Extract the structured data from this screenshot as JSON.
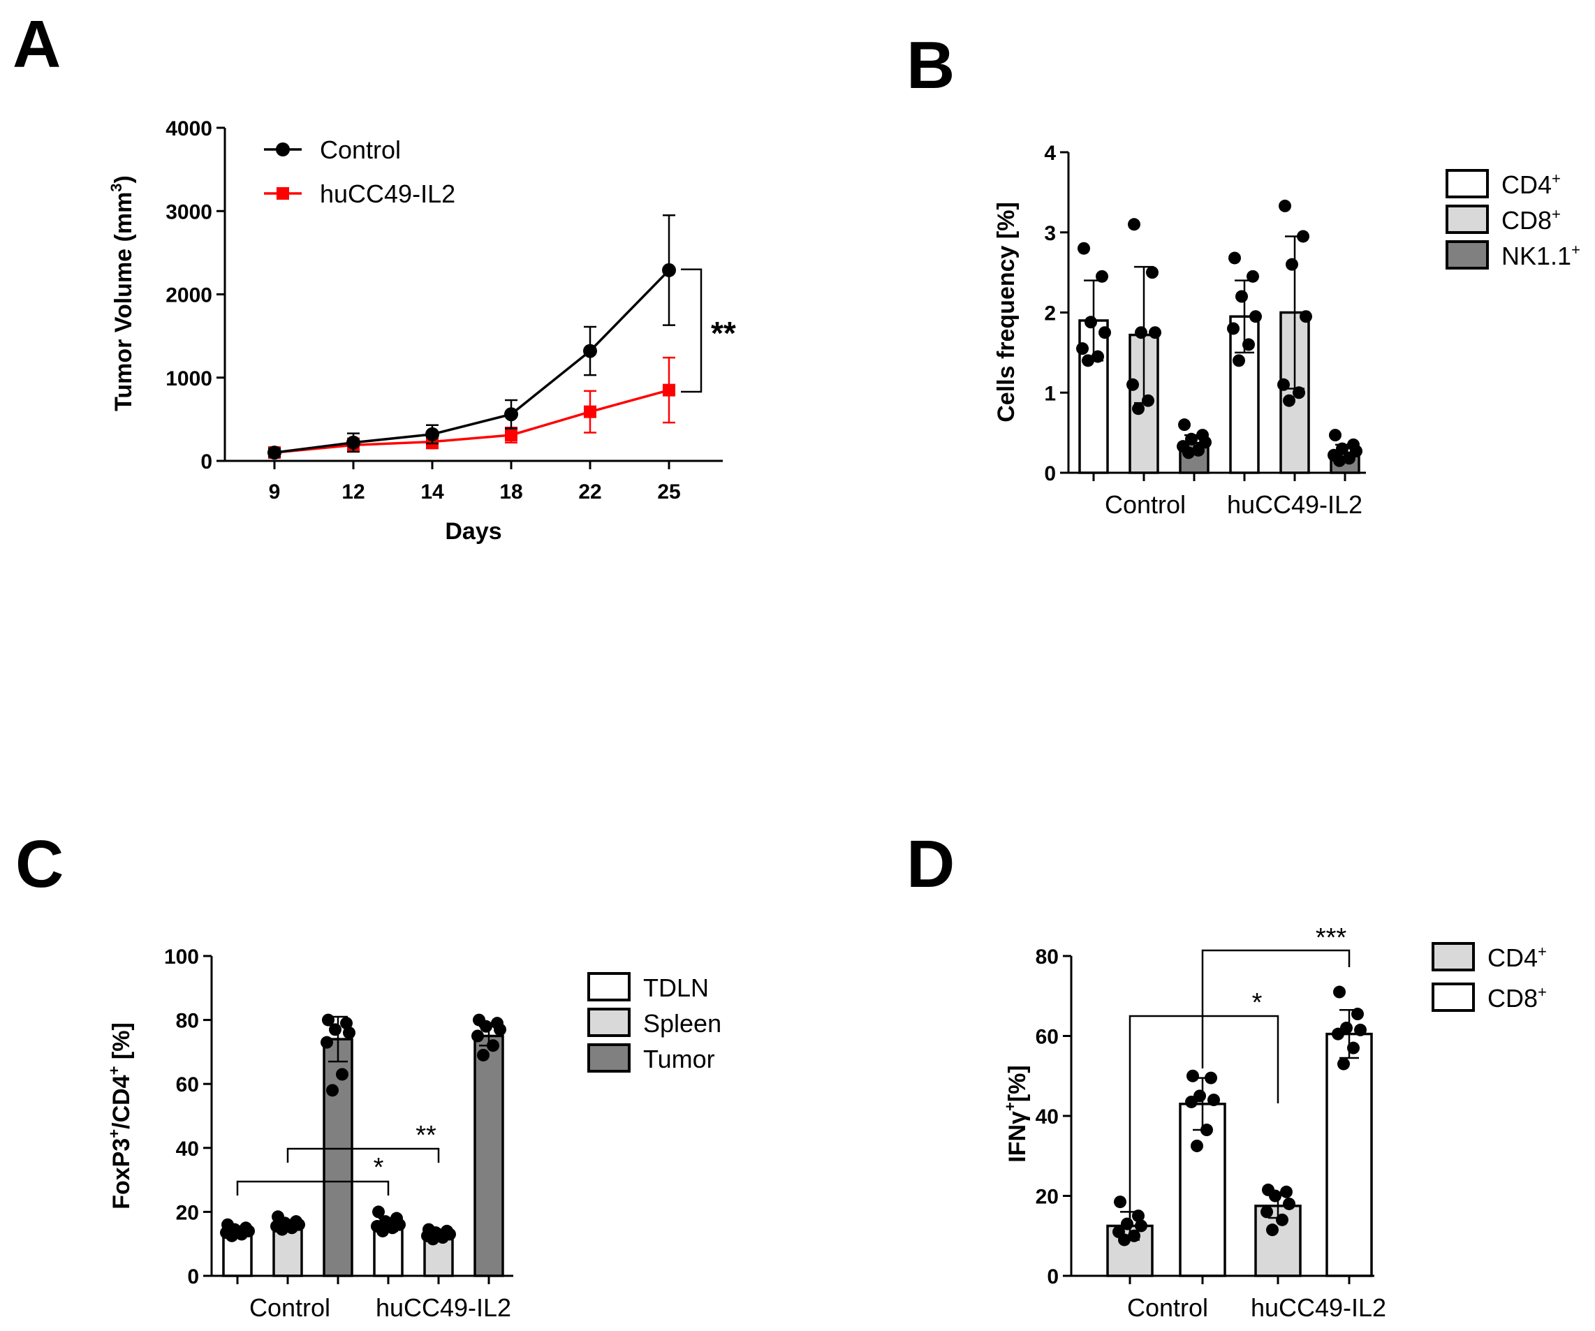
{
  "chart_data": [
    {
      "panel": "A",
      "type": "line",
      "title": "",
      "xlabel": "Days",
      "ylabel": "Tumor Volume (mm",
      "ylabel_sup": "3",
      "ylabel_end": ")",
      "ylim": [
        0,
        4000
      ],
      "yticks": [
        0,
        1000,
        2000,
        3000,
        4000
      ],
      "categories": [
        "9",
        "12",
        "14",
        "18",
        "22",
        "25"
      ],
      "series": [
        {
          "name": "Control",
          "color": "#000000",
          "marker": "circle",
          "values": [
            100,
            220,
            320,
            560,
            1320,
            2290
          ],
          "errors": [
            50,
            110,
            110,
            170,
            290,
            660
          ]
        },
        {
          "name": "huCC49-IL2",
          "color": "#ff0000",
          "marker": "square",
          "values": [
            100,
            190,
            230,
            310,
            590,
            850
          ],
          "errors": [
            50,
            80,
            80,
            90,
            250,
            390
          ]
        }
      ],
      "annotation": "**"
    },
    {
      "panel": "B",
      "type": "bar",
      "ylabel": "Cells frequency [%]",
      "ylim": [
        0,
        4
      ],
      "yticks": [
        0,
        1,
        2,
        3,
        4
      ],
      "groups": [
        "Control",
        "huCC49-IL2"
      ],
      "series": [
        {
          "name": "CD4",
          "sup": "+",
          "color": "#ffffff",
          "values": [
            1.9,
            1.95
          ],
          "errors": [
            0.5,
            0.45
          ],
          "points": [
            [
              2.8,
              2.45,
              1.88,
              1.75,
              1.55,
              1.45,
              1.4
            ],
            [
              2.68,
              2.45,
              2.2,
              1.95,
              1.8,
              1.6,
              1.4
            ]
          ]
        },
        {
          "name": "CD8",
          "sup": "+",
          "color": "#d9d9d9",
          "values": [
            1.72,
            2.0
          ],
          "errors": [
            0.85,
            0.95
          ],
          "points": [
            [
              3.1,
              2.5,
              1.75,
              1.75,
              1.1,
              0.9,
              0.8
            ],
            [
              3.33,
              2.95,
              2.6,
              1.95,
              1.1,
              1.0,
              0.9
            ]
          ]
        },
        {
          "name": "NK1.1",
          "sup": "+",
          "color": "#808080",
          "values": [
            0.37,
            0.25
          ],
          "errors": [
            0.1,
            0.1
          ],
          "points": [
            [
              0.6,
              0.47,
              0.42,
              0.38,
              0.33,
              0.28,
              0.25
            ],
            [
              0.47,
              0.35,
              0.3,
              0.27,
              0.22,
              0.18,
              0.15
            ]
          ]
        }
      ]
    },
    {
      "panel": "C",
      "type": "bar",
      "ylabel": "FoxP3",
      "ylabel_sup1": "+",
      "ylabel_mid": "/CD4",
      "ylabel_sup2": "+",
      "ylabel_end": " [%]",
      "ylim": [
        0,
        100
      ],
      "yticks": [
        0,
        20,
        40,
        60,
        80,
        100
      ],
      "groups": [
        "Control",
        "huCC49-IL2"
      ],
      "series": [
        {
          "name": "TDLN",
          "color": "#ffffff",
          "values": [
            14,
            16
          ],
          "errors": [
            1.5,
            2
          ],
          "points": [
            [
              16,
              15,
              14.5,
              14,
              13.5,
              13,
              12.5
            ],
            [
              20,
              18,
              17,
              16,
              15.5,
              15,
              14
            ]
          ]
        },
        {
          "name": "Spleen",
          "color": "#d9d9d9",
          "values": [
            16,
            13
          ],
          "errors": [
            1.5,
            1.5
          ],
          "points": [
            [
              18.5,
              17,
              16.5,
              16,
              15.5,
              15,
              14.5
            ],
            [
              14.5,
              14,
              13.5,
              13,
              12.5,
              12,
              11.5
            ]
          ]
        },
        {
          "name": "Tumor",
          "color": "#808080",
          "values": [
            74,
            75
          ],
          "errors": [
            7,
            3
          ],
          "points": [
            [
              80,
              79,
              77,
              76,
              73,
              63,
              58
            ],
            [
              80,
              79,
              78,
              77,
              75,
              72,
              69
            ]
          ]
        }
      ],
      "annotations": [
        "*",
        "**"
      ]
    },
    {
      "panel": "D",
      "type": "bar",
      "ylabel": "IFNγ",
      "ylabel_sup": "+",
      "ylabel_end": "[%]",
      "ylim": [
        0,
        80
      ],
      "yticks": [
        0,
        20,
        40,
        60,
        80
      ],
      "groups": [
        "Control",
        "huCC49-IL2"
      ],
      "series": [
        {
          "name": "CD4",
          "sup": "+",
          "color": "#d9d9d9",
          "values": [
            12.5,
            17.5
          ],
          "errors": [
            3.5,
            3
          ],
          "points": [
            [
              18.5,
              15,
              13,
              12.5,
              11,
              10,
              9
            ],
            [
              21.5,
              21,
              20,
              18,
              16,
              14,
              11.5
            ]
          ]
        },
        {
          "name": "CD8",
          "sup": "+",
          "color": "#ffffff",
          "values": [
            43,
            60.5
          ],
          "errors": [
            6.5,
            6
          ],
          "points": [
            [
              50,
              49.5,
              45,
              44,
              43.5,
              36.5,
              32.5
            ],
            [
              71,
              65.5,
              62,
              61.5,
              60.5,
              57,
              53
            ]
          ]
        }
      ],
      "annotations": [
        "*",
        "***"
      ]
    }
  ],
  "panels": {
    "a": {
      "letter": "A"
    },
    "b": {
      "letter": "B"
    },
    "c": {
      "letter": "C"
    },
    "d": {
      "letter": "D"
    }
  }
}
